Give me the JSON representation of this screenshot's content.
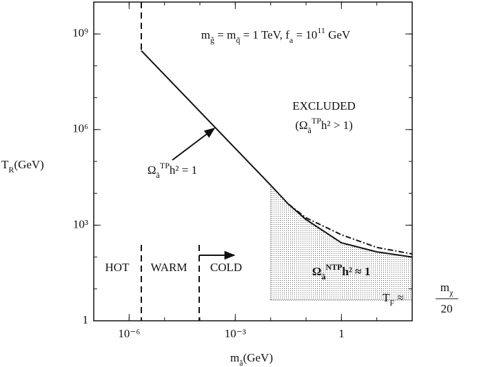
{
  "chart_data": {
    "type": "line",
    "x_label": [
      [
        "m",
        ""
      ],
      [
        "ã",
        "sub"
      ],
      [
        "(GeV)",
        ""
      ]
    ],
    "y_label": [
      [
        "T",
        ""
      ],
      [
        "R",
        "sub"
      ],
      [
        "(GeV)",
        ""
      ]
    ],
    "xscale": "log",
    "yscale": "log",
    "xlim": [
      1e-07,
      100
    ],
    "ylim": [
      1,
      10000000000.0
    ],
    "xticks": [
      {
        "value": 1e-06,
        "label": "10⁻⁶"
      },
      {
        "value": 0.001,
        "label": "10⁻³"
      },
      1
    ],
    "yticks": [
      1,
      {
        "value": 1000,
        "label": "10³"
      },
      {
        "value": 1000000,
        "label": "10⁶"
      },
      {
        "value": 1000000000,
        "label": "10⁹"
      }
    ],
    "series": [
      {
        "style": "solid",
        "color": "#111111",
        "x": [
          2.2e-06,
          0.01,
          0.0316,
          0.1,
          1,
          10,
          100
        ],
        "values": [
          300000000,
          18000,
          4600,
          1500,
          280,
          145,
          100
        ]
      },
      {
        "style": "dash-dot",
        "color": "#111111",
        "x": [
          0.0316,
          0.1,
          1,
          10,
          100
        ],
        "values": [
          4600,
          1700,
          500,
          200,
          125
        ]
      }
    ],
    "annotations": [
      {
        "parts": [
          [
            "m",
            ""
          ],
          [
            "g̃",
            "sub"
          ],
          [
            " = m",
            ""
          ],
          [
            "q̃",
            "sub"
          ],
          [
            " = 1 TeV,  f",
            ""
          ],
          [
            "a",
            "sub"
          ],
          [
            " = 10",
            ""
          ],
          [
            "11",
            "sup"
          ],
          [
            " GeV",
            ""
          ]
        ]
      },
      {
        "parts": [
          [
            "EXCLUDED",
            ""
          ]
        ]
      },
      {
        "parts": [
          [
            "(Ω",
            ""
          ],
          [
            "ã",
            "sub"
          ],
          [
            "TP",
            "sup"
          ],
          [
            "h² > 1)",
            ""
          ]
        ]
      },
      {
        "parts": [
          [
            "Ω",
            ""
          ],
          [
            "ã",
            "sub"
          ],
          [
            "TP",
            "sup"
          ],
          [
            "h² = 1",
            ""
          ]
        ]
      },
      {
        "parts": [
          [
            "HOT",
            ""
          ]
        ]
      },
      {
        "parts": [
          [
            "WARM",
            ""
          ]
        ]
      },
      {
        "parts": [
          [
            "COLD",
            ""
          ]
        ]
      },
      {
        "parts": [
          [
            "Ω",
            ""
          ],
          [
            "ã",
            "sub"
          ],
          [
            "NTP",
            "sup"
          ],
          [
            "h² ≈ 1",
            ""
          ]
        ]
      },
      {
        "parts": [
          [
            "T",
            ""
          ],
          [
            "F",
            "sub"
          ],
          [
            " ≈",
            ""
          ]
        ]
      },
      {
        "parts": [
          [
            "m",
            ""
          ],
          [
            "χ",
            "sub"
          ]
        ]
      },
      {
        "parts": [
          [
            "20",
            ""
          ]
        ]
      }
    ]
  }
}
